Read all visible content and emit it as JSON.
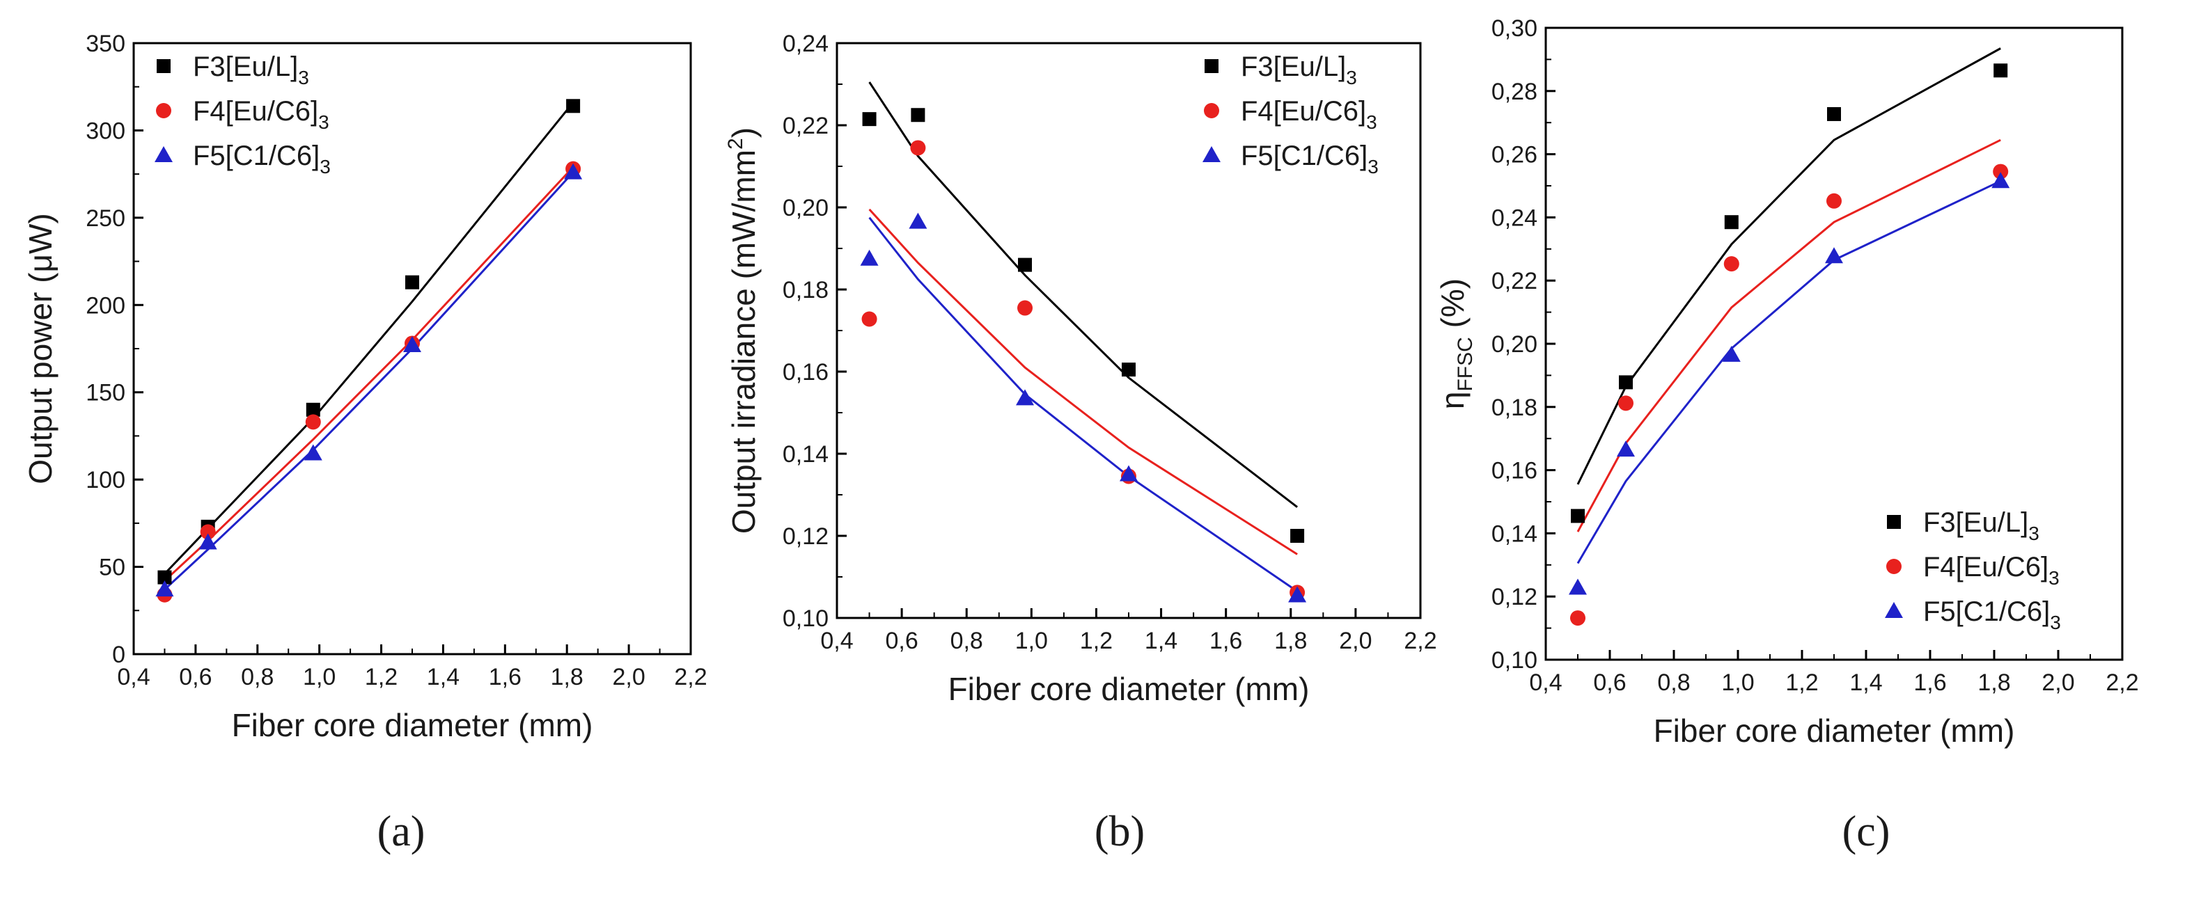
{
  "chart_data": [
    {
      "type": "scatter",
      "panel_label": "(a)",
      "xlabel": "Fiber core diameter (mm)",
      "ylabel": "Output power (μW)",
      "xlim": [
        0.4,
        2.2
      ],
      "ylim": [
        0,
        350
      ],
      "xticks": [
        "0,4",
        "0,6",
        "0,8",
        "1,0",
        "1,2",
        "1,4",
        "1,6",
        "1,8",
        "2,0",
        "2,2"
      ],
      "yticks": [
        "0",
        "50",
        "100",
        "150",
        "200",
        "250",
        "300",
        "350"
      ],
      "legend_position": "top-left",
      "series": [
        {
          "name": "F3[Eu/L]",
          "sub": "3",
          "color": "#000000",
          "marker": "square",
          "x": [
            0.5,
            0.64,
            0.98,
            1.3,
            1.82
          ],
          "y": [
            44,
            73,
            140,
            213,
            314
          ],
          "fit": [
            [
              0.5,
              46
            ],
            [
              0.64,
              72
            ],
            [
              0.98,
              135
            ],
            [
              1.3,
              202
            ],
            [
              1.82,
              316
            ]
          ]
        },
        {
          "name": "F4[Eu/C6]",
          "sub": "3",
          "color": "#e8211e",
          "marker": "circle",
          "x": [
            0.5,
            0.64,
            0.98,
            1.3,
            1.82
          ],
          "y": [
            34,
            70,
            133,
            178,
            278
          ],
          "fit": [
            [
              0.5,
              42
            ],
            [
              0.64,
              65
            ],
            [
              0.98,
              123
            ],
            [
              1.3,
              180
            ],
            [
              1.82,
              279
            ]
          ]
        },
        {
          "name": "F5[C1/C6]",
          "sub": "3",
          "color": "#1f22c9",
          "marker": "triangle",
          "x": [
            0.5,
            0.64,
            0.98,
            1.3,
            1.82
          ],
          "y": [
            37,
            64,
            115,
            177,
            276
          ],
          "fit": [
            [
              0.5,
              37
            ],
            [
              0.64,
              60
            ],
            [
              0.98,
              117
            ],
            [
              1.3,
              175
            ],
            [
              1.82,
              276
            ]
          ]
        }
      ]
    },
    {
      "type": "scatter",
      "panel_label": "(b)",
      "xlabel": "Fiber core diameter (mm)",
      "ylabel": "Output irradiance (mW/mm",
      "ylabel_sup": "2",
      "ylabel_end": ")",
      "xlim": [
        0.4,
        2.2
      ],
      "ylim": [
        0.1,
        0.24
      ],
      "xticks": [
        "0,4",
        "0,6",
        "0,8",
        "1,0",
        "1,2",
        "1,4",
        "1,6",
        "1,8",
        "2,0",
        "2,2"
      ],
      "yticks": [
        "0,10",
        "0,12",
        "0,14",
        "0,16",
        "0,18",
        "0,20",
        "0,22",
        "0,24"
      ],
      "legend_position": "top-right",
      "series": [
        {
          "name": "F3[Eu/L]",
          "sub": "3",
          "color": "#000000",
          "marker": "square",
          "x": [
            0.5,
            0.65,
            0.98,
            1.3,
            1.82
          ],
          "y": [
            0.2215,
            0.2225,
            0.186,
            0.1605,
            0.12
          ],
          "fit": [
            [
              0.5,
              0.2305
            ],
            [
              0.65,
              0.2125
            ],
            [
              0.98,
              0.1835
            ],
            [
              1.3,
              0.1585
            ],
            [
              1.82,
              0.127
            ]
          ]
        },
        {
          "name": "F4[Eu/C6]",
          "sub": "3",
          "color": "#e8211e",
          "marker": "circle",
          "x": [
            0.5,
            0.65,
            0.98,
            1.3,
            1.82
          ],
          "y": [
            0.1728,
            0.2145,
            0.1755,
            0.1345,
            0.1062
          ],
          "fit": [
            [
              0.5,
              0.1995
            ],
            [
              0.65,
              0.1865
            ],
            [
              0.98,
              0.161
            ],
            [
              1.3,
              0.1415
            ],
            [
              1.82,
              0.1155
            ]
          ]
        },
        {
          "name": "F5[C1/C6]",
          "sub": "3",
          "color": "#1f22c9",
          "marker": "triangle",
          "x": [
            0.5,
            0.65,
            0.98,
            1.3,
            1.82
          ],
          "y": [
            0.1875,
            0.1965,
            0.1535,
            0.135,
            0.1055
          ],
          "fit": [
            [
              0.5,
              0.1975
            ],
            [
              0.65,
              0.1825
            ],
            [
              0.98,
              0.1545
            ],
            [
              1.3,
              0.1345
            ],
            [
              1.82,
              0.1065
            ]
          ]
        }
      ]
    },
    {
      "type": "scatter",
      "panel_label": "(c)",
      "xlabel": "Fiber core diameter (mm)",
      "ylabel": "η",
      "ylabel_sub": "FFSC",
      "ylabel_end": " (%)",
      "xlim": [
        0.4,
        2.2
      ],
      "ylim": [
        0.1,
        0.3
      ],
      "xticks": [
        "0,4",
        "0,6",
        "0,8",
        "1,0",
        "1,2",
        "1,4",
        "1,6",
        "1,8",
        "2,0",
        "2,2"
      ],
      "yticks": [
        "0,10",
        "0,12",
        "0,14",
        "0,16",
        "0,18",
        "0,20",
        "0,22",
        "0,24",
        "0,26",
        "0,28",
        "0,30"
      ],
      "legend_position": "bottom-right",
      "series": [
        {
          "name": "F3[Eu/L]",
          "sub": "3",
          "color": "#000000",
          "marker": "square",
          "x": [
            0.5,
            0.65,
            0.98,
            1.3,
            1.82
          ],
          "y": [
            0.1455,
            0.1878,
            0.2385,
            0.2727,
            0.2865
          ],
          "fit": [
            [
              0.5,
              0.1555
            ],
            [
              0.65,
              0.1865
            ],
            [
              0.98,
              0.2315
            ],
            [
              1.3,
              0.2645
            ],
            [
              1.82,
              0.2935
            ]
          ]
        },
        {
          "name": "F4[Eu/C6]",
          "sub": "3",
          "color": "#e8211e",
          "marker": "circle",
          "x": [
            0.5,
            0.65,
            0.98,
            1.3,
            1.82
          ],
          "y": [
            0.1132,
            0.1812,
            0.2253,
            0.2452,
            0.2545
          ],
          "fit": [
            [
              0.5,
              0.1405
            ],
            [
              0.65,
              0.1685
            ],
            [
              0.98,
              0.2115
            ],
            [
              1.3,
              0.2385
            ],
            [
              1.82,
              0.2645
            ]
          ]
        },
        {
          "name": "F5[C1/C6]",
          "sub": "3",
          "color": "#1f22c9",
          "marker": "triangle",
          "x": [
            0.5,
            0.65,
            0.98,
            1.3,
            1.82
          ],
          "y": [
            0.1228,
            0.1665,
            0.1965,
            0.2277,
            0.2515
          ],
          "fit": [
            [
              0.5,
              0.1305
            ],
            [
              0.65,
              0.1565
            ],
            [
              0.98,
              0.1985
            ],
            [
              1.3,
              0.2265
            ],
            [
              1.82,
              0.2515
            ]
          ]
        }
      ]
    }
  ]
}
